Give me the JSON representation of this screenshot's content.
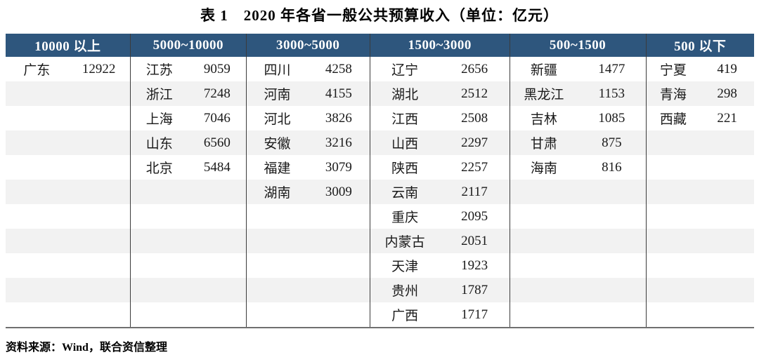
{
  "title": "表 1　2020 年各省一般公共预算收入（单位：亿元）",
  "source_note": "资料来源：Wind，联合资信整理",
  "colors": {
    "header_bg": "#2e567d",
    "header_text": "#ffffff",
    "stripe_bg": "#f2f2f2",
    "divider": "#3b3b3b",
    "bottom_rule": "#6f6f6f"
  },
  "table": {
    "row_count": 11,
    "columns": [
      {
        "header": "10000 以上",
        "entries": [
          {
            "name": "广东",
            "value": "12922"
          }
        ]
      },
      {
        "header": "5000~10000",
        "entries": [
          {
            "name": "江苏",
            "value": "9059"
          },
          {
            "name": "浙江",
            "value": "7248"
          },
          {
            "name": "上海",
            "value": "7046"
          },
          {
            "name": "山东",
            "value": "6560"
          },
          {
            "name": "北京",
            "value": "5484"
          }
        ]
      },
      {
        "header": "3000~5000",
        "entries": [
          {
            "name": "四川",
            "value": "4258"
          },
          {
            "name": "河南",
            "value": "4155"
          },
          {
            "name": "河北",
            "value": "3826"
          },
          {
            "name": "安徽",
            "value": "3216"
          },
          {
            "name": "福建",
            "value": "3079"
          },
          {
            "name": "湖南",
            "value": "3009"
          }
        ]
      },
      {
        "header": "1500~3000",
        "entries": [
          {
            "name": "辽宁",
            "value": "2656"
          },
          {
            "name": "湖北",
            "value": "2512"
          },
          {
            "name": "江西",
            "value": "2508"
          },
          {
            "name": "山西",
            "value": "2297"
          },
          {
            "name": "陕西",
            "value": "2257"
          },
          {
            "name": "云南",
            "value": "2117"
          },
          {
            "name": "重庆",
            "value": "2095"
          },
          {
            "name": "内蒙古",
            "value": "2051"
          },
          {
            "name": "天津",
            "value": "1923"
          },
          {
            "name": "贵州",
            "value": "1787"
          },
          {
            "name": "广西",
            "value": "1717"
          }
        ]
      },
      {
        "header": "500~1500",
        "entries": [
          {
            "name": "新疆",
            "value": "1477"
          },
          {
            "name": "黑龙江",
            "value": "1153"
          },
          {
            "name": "吉林",
            "value": "1085"
          },
          {
            "name": "甘肃",
            "value": "875"
          },
          {
            "name": "海南",
            "value": "816"
          }
        ]
      },
      {
        "header": "500 以下",
        "entries": [
          {
            "name": "宁夏",
            "value": "419"
          },
          {
            "name": "青海",
            "value": "298"
          },
          {
            "name": "西藏",
            "value": "221"
          }
        ]
      }
    ]
  }
}
